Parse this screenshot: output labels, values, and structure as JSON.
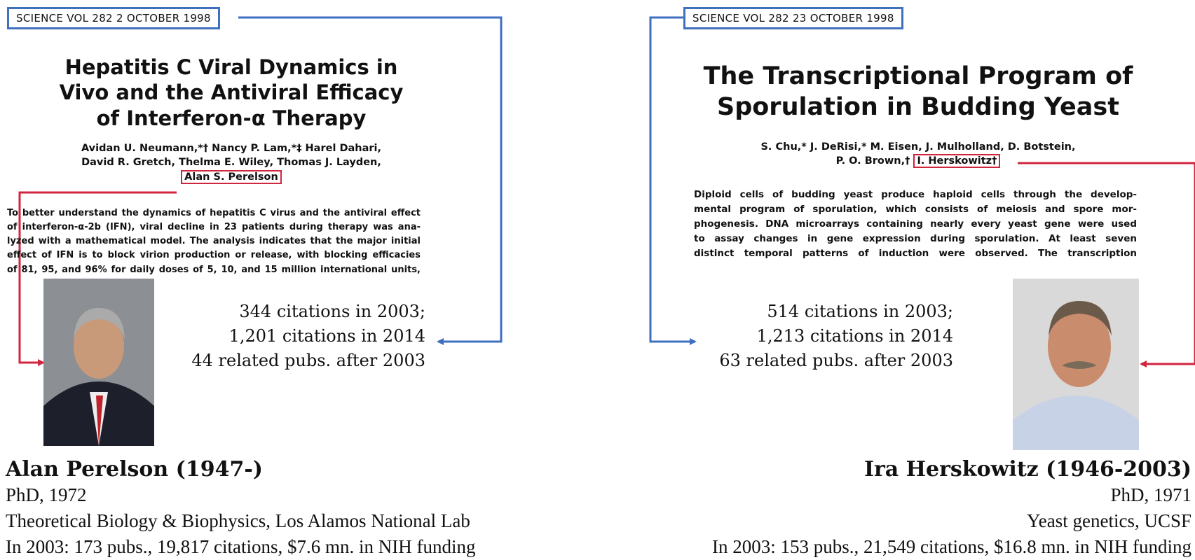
{
  "left": {
    "journal": "SCIENCE   VOL 282   2 OCTOBER 1998",
    "title_lines": [
      "Hepatitis C Viral Dynamics in",
      "Vivo and the Antiviral Efficacy",
      "of Interferon-α Therapy"
    ],
    "author_lines": [
      "Avidan U. Neumann,*† Nancy P. Lam,*‡ Harel Dahari,",
      "David R. Gretch, Thelma E. Wiley, Thomas J. Layden,"
    ],
    "highlighted_author": "Alan S. Perelson",
    "abstract_lines": [
      "To better understand the dynamics of hepatitis C virus and the antiviral effect",
      "of interferon-α-2b (IFN), viral decline in 23 patients during therapy was ana-",
      "lyzed with a mathematical model. The analysis indicates that the major initial",
      "effect of IFN is to block virion production or release, with blocking efficacies",
      "of 81, 95, and 96% for daily doses of 5, 10, and 15 million international units,"
    ],
    "citation_lines": [
      "344 citations in 2003;",
      "1,201 citations in 2014",
      "44 related pubs. after 2003"
    ],
    "person": {
      "name": "Alan Perelson (1947-)",
      "lines": [
        "PhD, 1972",
        "Theoretical Biology & Biophysics, Los Alamos National Lab",
        "In 2003: 173 pubs., 19,817 citations, $7.6 mn. in NIH funding"
      ]
    }
  },
  "right": {
    "journal": "SCIENCE   VOL 282   23 OCTOBER 1998",
    "title_lines": [
      "The Transcriptional Program of",
      "Sporulation in Budding Yeast"
    ],
    "author_lines": [
      "S. Chu,* J. DeRisi,* M. Eisen, J. Mulholland, D. Botstein,",
      "P. O. Brown,†"
    ],
    "highlighted_author": "I. Herskowitz†",
    "abstract_lines": [
      "Diploid cells of budding yeast produce haploid cells through the develop-",
      "mental program of sporulation, which consists of meiosis and spore mor-",
      "phogenesis. DNA microarrays containing nearly every yeast gene were used",
      "to assay changes in gene expression during sporulation. At least seven",
      "distinct temporal patterns of induction were observed. The transcription"
    ],
    "citation_lines": [
      "514 citations in 2003;",
      "1,213 citations in 2014",
      "63 related pubs. after 2003"
    ],
    "person": {
      "name": "Ira Herskowitz (1946-2003)",
      "lines": [
        "PhD, 1971",
        "Yeast genetics, UCSF",
        "In 2003: 153 pubs., 21,549 citations, $16.8 mn. in NIH funding"
      ]
    }
  }
}
